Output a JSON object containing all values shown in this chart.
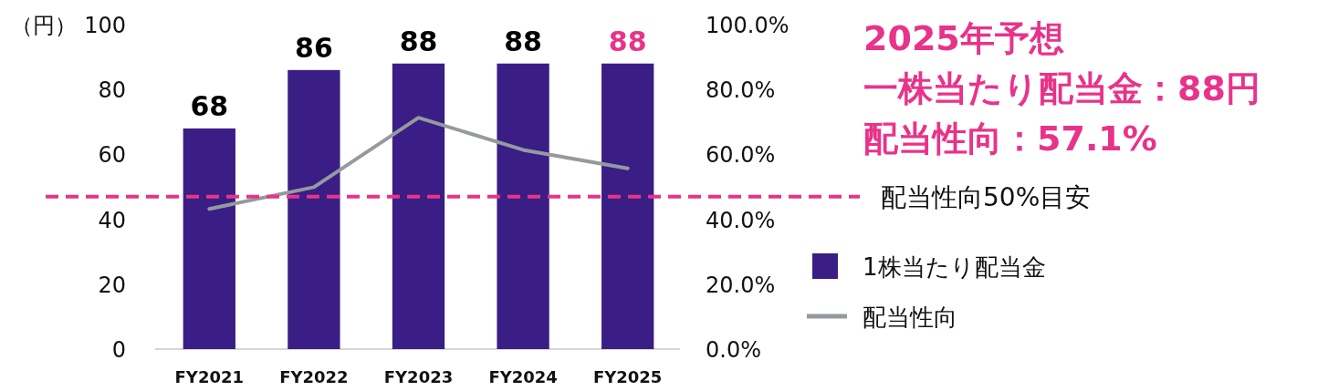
{
  "chart_data": {
    "type": "bar",
    "ylabel": "（円）",
    "categories": [
      "FY2021",
      "FY2022",
      "FY2023",
      "FY2024",
      "FY2025"
    ],
    "series": [
      {
        "name": "1株当たり配当金",
        "color": "#3a1e85",
        "values": [
          68,
          86,
          88,
          88,
          88
        ],
        "value_labels": [
          "68",
          "86",
          "88",
          "88",
          "88"
        ]
      },
      {
        "name": "配当性向",
        "type": "line",
        "axis": "y2",
        "color": "#949a9e",
        "values": [
          43.2,
          49.9,
          71.3,
          61.4,
          55.7
        ]
      }
    ],
    "ylim": [
      0,
      100
    ],
    "yticks": [
      0,
      20,
      40,
      60,
      80,
      100
    ],
    "y2lim": [
      0,
      100
    ],
    "y2ticks": [
      {
        "value": 0,
        "label": "0.0%"
      },
      {
        "value": 20,
        "label": "20.0%"
      },
      {
        "value": 40,
        "label": "40.0%"
      },
      {
        "value": 60,
        "label": "60.0%"
      },
      {
        "value": 80,
        "label": "80.0%"
      },
      {
        "value": 100,
        "label": "100.0%"
      }
    ],
    "ref_lines": [
      {
        "axis": "y2",
        "value": 47,
        "label": "配当性向50%目安",
        "color": "#e8338a",
        "line_style": "dashed"
      }
    ],
    "annotations": [
      "2025年予想",
      "一株当たり配当金：88円",
      "配当性向：57.1%"
    ],
    "legend": "right",
    "grid": false,
    "marker": "none",
    "line_style": "solid"
  }
}
